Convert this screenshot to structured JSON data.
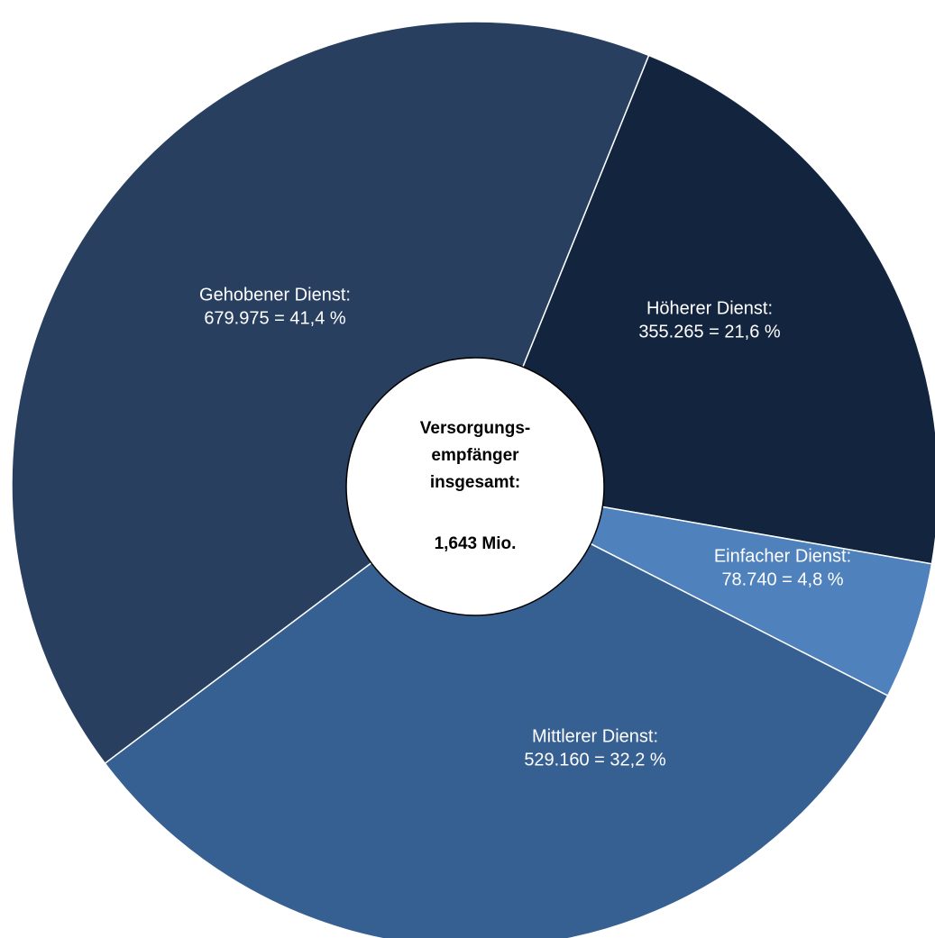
{
  "chart_data": {
    "type": "pie",
    "categories": [
      "Höherer Dienst:",
      "Einfacher Dienst:",
      "Mittlerer Dienst:",
      "Gehobener Dienst:"
    ],
    "values": [
      355265,
      78740,
      529160,
      679975
    ],
    "value_labels": [
      "355.265 = 21,6 %",
      "78.740 = 4,8 %",
      "529.160 = 32,2 %",
      "679.975 = 41,4 %"
    ],
    "colors": [
      "#13243f",
      "#4f81bd",
      "#376092",
      "#283f60"
    ],
    "center_label": [
      "Versorgungs-",
      "empfänger",
      "insgesamt:"
    ],
    "total_label": "1,643 Mio."
  }
}
